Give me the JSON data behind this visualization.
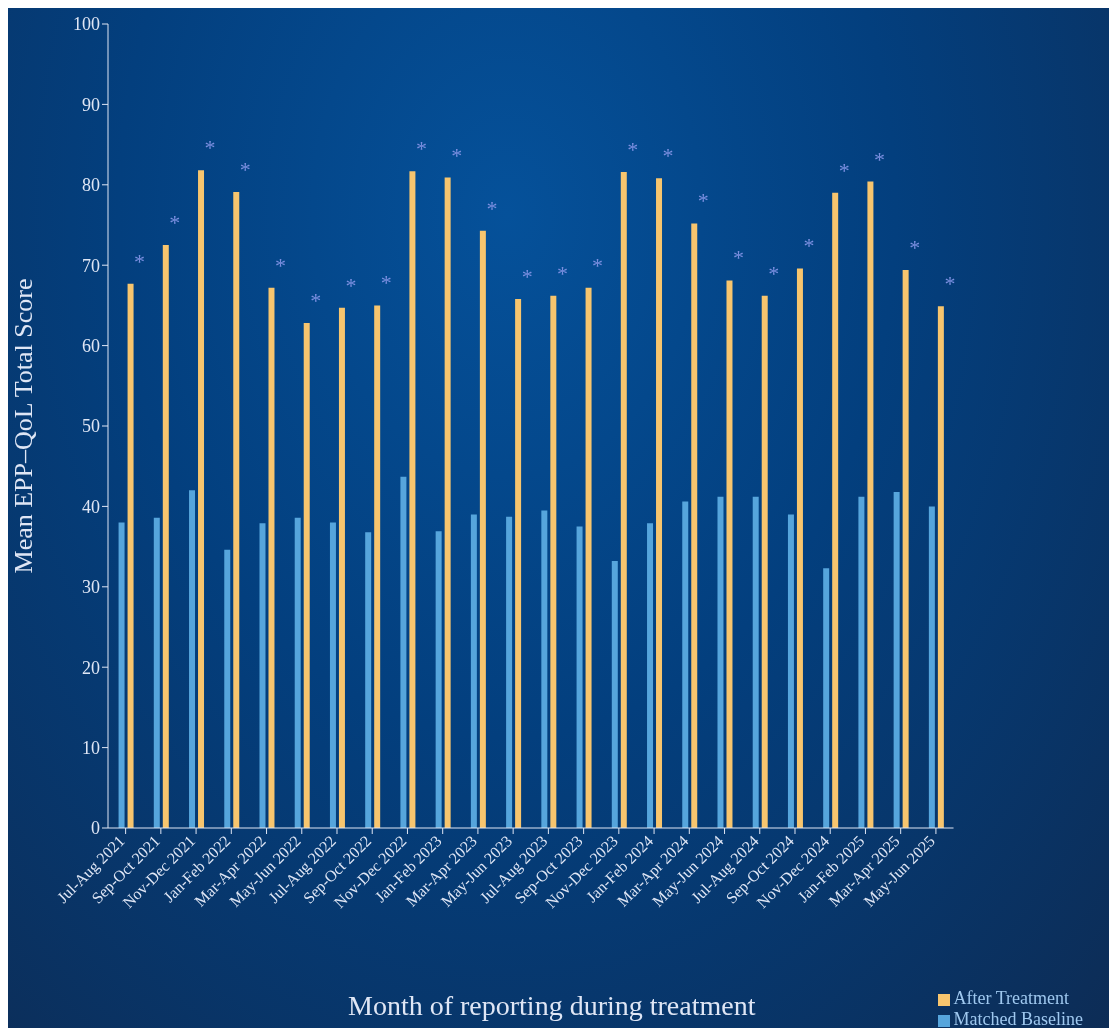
{
  "chart_data": {
    "type": "bar",
    "xlabel": "Month of reporting during treatment",
    "ylabel": "Mean EPP–QoL Total Score",
    "categories": [
      "Jul-Aug 2021",
      "Sep-Oct 2021",
      "Nov-Dec 2021",
      "Jan-Feb 2022",
      "Mar-Apr 2022",
      "May-Jun 2022",
      "Jul-Aug 2022",
      "Sep-Oct 2022",
      "Nov-Dec 2022",
      "Jan-Feb 2023",
      "Mar-Apr 2023",
      "May-Jun 2023",
      "Jul-Aug 2023",
      "Sep-Oct 2023",
      "Nov-Dec 2023",
      "Jan-Feb 2024",
      "Mar-Apr 2024",
      "May-Jun 2024",
      "Jul-Aug 2024",
      "Sep-Oct 2024",
      "Nov-Dec 2024",
      "Jan-Feb 2025",
      "Mar-Apr 2025",
      "May-Jun 2025"
    ],
    "series": [
      {
        "name": "Matched Baseline",
        "color": "#56a5dc",
        "values": [
          38.0,
          38.6,
          42.0,
          34.6,
          37.9,
          38.6,
          38.0,
          36.8,
          43.7,
          36.9,
          39.0,
          38.7,
          39.5,
          37.5,
          33.2,
          37.9,
          40.6,
          41.2,
          41.2,
          39.0,
          32.3,
          41.2,
          41.8,
          40.0
        ]
      },
      {
        "name": "After Treatment",
        "color": "#f7c56e",
        "values": [
          67.7,
          72.5,
          81.8,
          79.1,
          67.2,
          62.8,
          64.7,
          65.0,
          81.7,
          80.9,
          74.3,
          65.8,
          66.2,
          67.2,
          81.6,
          80.8,
          75.2,
          68.1,
          66.2,
          69.6,
          79.0,
          80.4,
          69.4,
          64.9
        ]
      }
    ],
    "annotations": [
      {
        "text": "*",
        "x": "Jul-Aug 2021",
        "y": 67.7
      },
      {
        "text": "*",
        "x": "Sep-Oct 2021",
        "y": 72.5
      },
      {
        "text": "*",
        "x": "Nov-Dec 2021",
        "y": 81.8
      },
      {
        "text": "*",
        "x": "Jan-Feb 2022",
        "y": 79.1
      },
      {
        "text": "*",
        "x": "Mar-Apr 2022",
        "y": 67.2
      },
      {
        "text": "*",
        "x": "May-Jun 2022",
        "y": 62.8
      },
      {
        "text": "*",
        "x": "Jul-Aug 2022",
        "y": 64.7
      },
      {
        "text": "*",
        "x": "Sep-Oct 2022",
        "y": 65.0
      },
      {
        "text": "*",
        "x": "Nov-Dec 2022",
        "y": 81.7
      },
      {
        "text": "*",
        "x": "Jan-Feb 2023",
        "y": 80.9
      },
      {
        "text": "*",
        "x": "Mar-Apr 2023",
        "y": 74.3
      },
      {
        "text": "*",
        "x": "May-Jun 2023",
        "y": 65.8
      },
      {
        "text": "*",
        "x": "Jul-Aug 2023",
        "y": 66.2
      },
      {
        "text": "*",
        "x": "Sep-Oct 2023",
        "y": 67.2
      },
      {
        "text": "*",
        "x": "Nov-Dec 2023",
        "y": 81.6
      },
      {
        "text": "*",
        "x": "Jan-Feb 2024",
        "y": 80.8
      },
      {
        "text": "*",
        "x": "Mar-Apr 2024",
        "y": 75.2
      },
      {
        "text": "*",
        "x": "May-Jun 2024",
        "y": 68.1
      },
      {
        "text": "*",
        "x": "Jul-Aug 2024",
        "y": 66.2
      },
      {
        "text": "*",
        "x": "Sep-Oct 2024",
        "y": 69.6
      },
      {
        "text": "*",
        "x": "Nov-Dec 2024",
        "y": 79.0
      },
      {
        "text": "*",
        "x": "Jan-Feb 2025",
        "y": 80.4
      },
      {
        "text": "*",
        "x": "Mar-Apr 2025",
        "y": 69.4
      },
      {
        "text": "*",
        "x": "May-Jun 2025",
        "y": 64.9
      }
    ],
    "ylim": [
      0,
      100
    ],
    "yticks": [
      0,
      10,
      20,
      30,
      40,
      50,
      60,
      70,
      80,
      90,
      100
    ],
    "grid": false,
    "legend": "bottom right"
  }
}
